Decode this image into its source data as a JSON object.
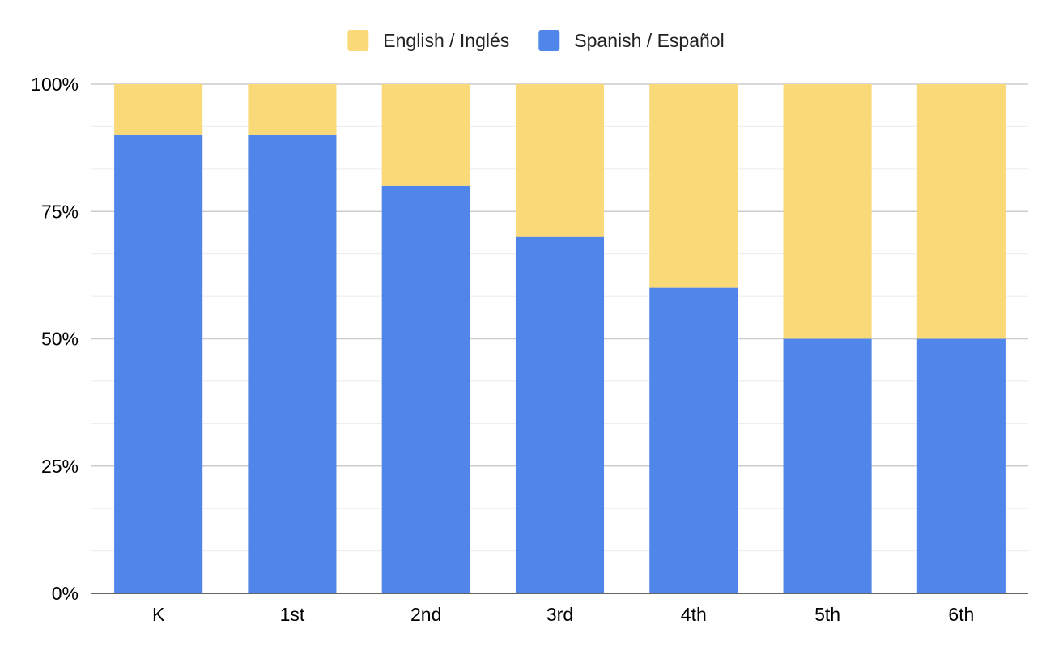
{
  "chart_data": {
    "type": "bar",
    "stacked": true,
    "normalized": true,
    "categories": [
      "K",
      "1st",
      "2nd",
      "3rd",
      "4th",
      "5th",
      "6th"
    ],
    "series": [
      {
        "name": "Spanish / Español",
        "values": [
          90,
          90,
          80,
          70,
          60,
          50,
          50
        ],
        "color": "#5086ea"
      },
      {
        "name": "English / Inglés",
        "values": [
          10,
          10,
          20,
          30,
          40,
          50,
          50
        ],
        "color": "#f9d978"
      }
    ],
    "legend_order": [
      "English / Inglés",
      "Spanish / Español"
    ],
    "legend_position": "top",
    "ylim": [
      0,
      100
    ],
    "yticks": [
      0,
      25,
      50,
      75,
      100
    ],
    "ytick_labels": [
      "0%",
      "25%",
      "50%",
      "75%",
      "100%"
    ],
    "minor_gridlines": true,
    "title": "",
    "xlabel": "",
    "ylabel": ""
  }
}
